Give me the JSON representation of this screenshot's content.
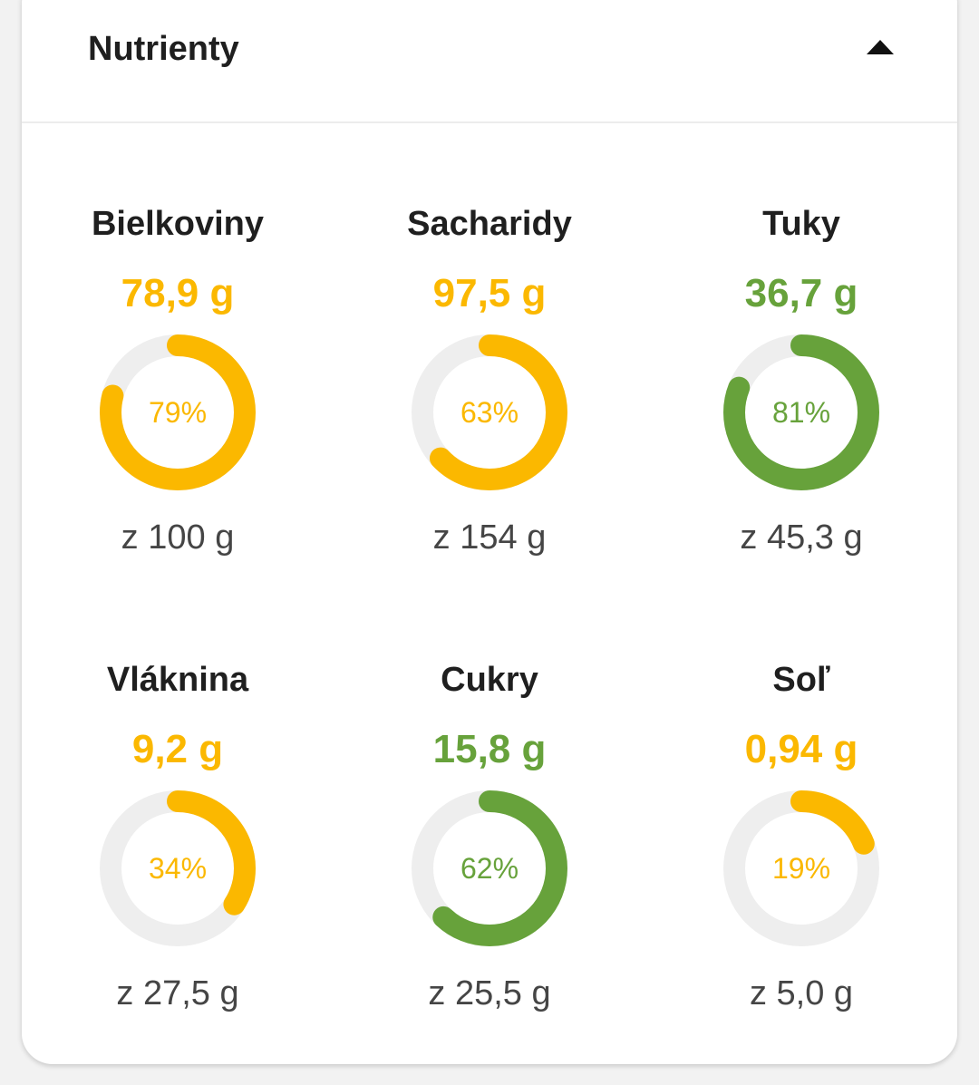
{
  "header": {
    "title": "Nutrienty",
    "collapse_icon": "triangle-up-icon"
  },
  "colors": {
    "yellow": "#fbb800",
    "green": "#67a23b",
    "track": "#eeeeee"
  },
  "nutrients": [
    {
      "id": "bielkoviny",
      "name": "Bielkoviny",
      "value": "78,9 g",
      "percent": 79,
      "percent_label": "79%",
      "target": "z 100 g",
      "color": "#fbb800"
    },
    {
      "id": "sacharidy",
      "name": "Sacharidy",
      "value": "97,5 g",
      "percent": 63,
      "percent_label": "63%",
      "target": "z 154 g",
      "color": "#fbb800"
    },
    {
      "id": "tuky",
      "name": "Tuky",
      "value": "36,7 g",
      "percent": 81,
      "percent_label": "81%",
      "target": "z 45,3 g",
      "color": "#67a23b"
    },
    {
      "id": "vlaknina",
      "name": "Vláknina",
      "value": "9,2 g",
      "percent": 34,
      "percent_label": "34%",
      "target": "z 27,5 g",
      "color": "#fbb800"
    },
    {
      "id": "cukry",
      "name": "Cukry",
      "value": "15,8 g",
      "percent": 62,
      "percent_label": "62%",
      "target": "z 25,5 g",
      "color": "#67a23b"
    },
    {
      "id": "sol",
      "name": "Soľ",
      "value": "0,94 g",
      "percent": 19,
      "percent_label": "19%",
      "target": "z 5,0 g",
      "color": "#fbb800"
    }
  ]
}
